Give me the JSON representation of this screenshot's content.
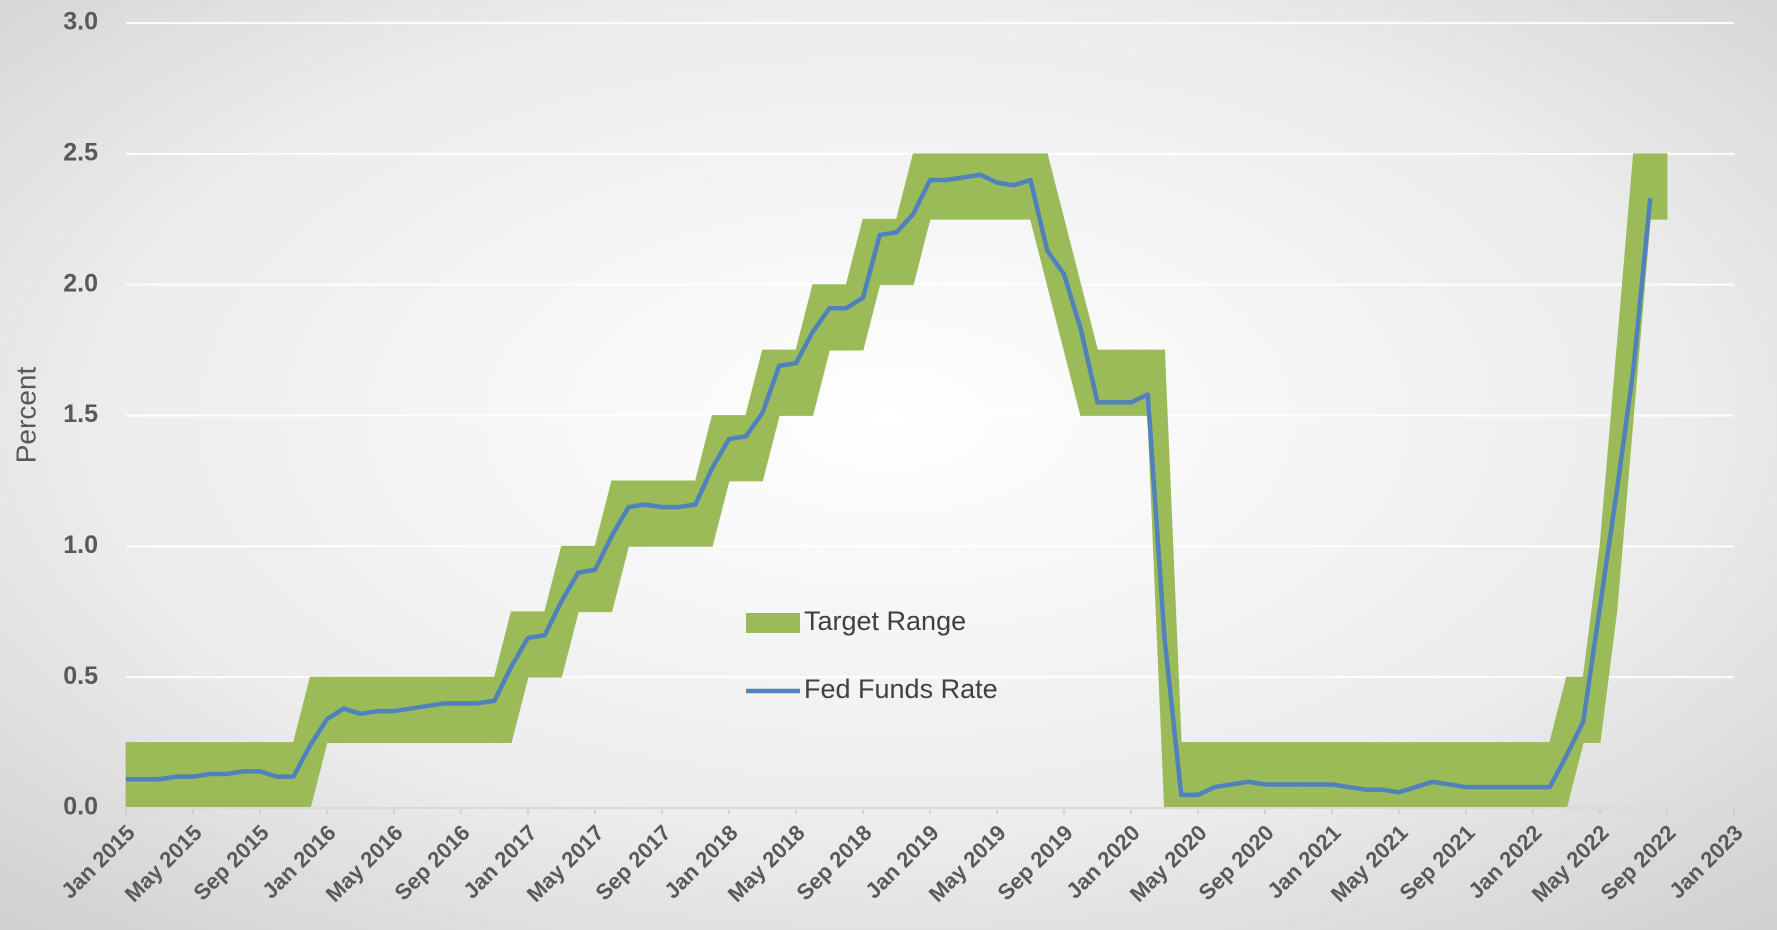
{
  "chart_data": {
    "type": "band-line",
    "y_label": "Percent",
    "x": [
      "2015-01",
      "2015-02",
      "2015-03",
      "2015-04",
      "2015-05",
      "2015-06",
      "2015-07",
      "2015-08",
      "2015-09",
      "2015-10",
      "2015-11",
      "2015-12",
      "2016-01",
      "2016-02",
      "2016-03",
      "2016-04",
      "2016-05",
      "2016-06",
      "2016-07",
      "2016-08",
      "2016-09",
      "2016-10",
      "2016-11",
      "2016-12",
      "2017-01",
      "2017-02",
      "2017-03",
      "2017-04",
      "2017-05",
      "2017-06",
      "2017-07",
      "2017-08",
      "2017-09",
      "2017-10",
      "2017-11",
      "2017-12",
      "2018-01",
      "2018-02",
      "2018-03",
      "2018-04",
      "2018-05",
      "2018-06",
      "2018-07",
      "2018-08",
      "2018-09",
      "2018-10",
      "2018-11",
      "2018-12",
      "2019-01",
      "2019-02",
      "2019-03",
      "2019-04",
      "2019-05",
      "2019-06",
      "2019-07",
      "2019-08",
      "2019-09",
      "2019-10",
      "2019-11",
      "2019-12",
      "2020-01",
      "2020-02",
      "2020-03",
      "2020-04",
      "2020-05",
      "2020-06",
      "2020-07",
      "2020-08",
      "2020-09",
      "2020-10",
      "2020-11",
      "2020-12",
      "2021-01",
      "2021-02",
      "2021-03",
      "2021-04",
      "2021-05",
      "2021-06",
      "2021-07",
      "2021-08",
      "2021-09",
      "2021-10",
      "2021-11",
      "2021-12",
      "2022-01",
      "2022-02",
      "2022-03",
      "2022-04",
      "2022-05",
      "2022-06",
      "2022-07",
      "2022-08",
      "2022-09"
    ],
    "series": [
      {
        "name": "Target Range",
        "color": "#9bbb59",
        "lower": [
          0,
          0,
          0,
          0,
          0,
          0,
          0,
          0,
          0,
          0,
          0,
          0,
          0.25,
          0.25,
          0.25,
          0.25,
          0.25,
          0.25,
          0.25,
          0.25,
          0.25,
          0.25,
          0.25,
          0.25,
          0.5,
          0.5,
          0.5,
          0.75,
          0.75,
          0.75,
          1.0,
          1.0,
          1.0,
          1.0,
          1.0,
          1.0,
          1.25,
          1.25,
          1.25,
          1.5,
          1.5,
          1.5,
          1.75,
          1.75,
          1.75,
          2.0,
          2.0,
          2.0,
          2.25,
          2.25,
          2.25,
          2.25,
          2.25,
          2.25,
          2.25,
          2.0,
          1.75,
          1.5,
          1.5,
          1.5,
          1.5,
          1.5,
          0,
          0,
          0,
          0,
          0,
          0,
          0,
          0,
          0,
          0,
          0,
          0,
          0,
          0,
          0,
          0,
          0,
          0,
          0,
          0,
          0,
          0,
          0,
          0,
          0,
          0.25,
          0.25,
          0.75,
          1.5,
          2.25,
          2.25
        ],
        "upper": [
          0.25,
          0.25,
          0.25,
          0.25,
          0.25,
          0.25,
          0.25,
          0.25,
          0.25,
          0.25,
          0.25,
          0.5,
          0.5,
          0.5,
          0.5,
          0.5,
          0.5,
          0.5,
          0.5,
          0.5,
          0.5,
          0.5,
          0.5,
          0.75,
          0.75,
          0.75,
          1.0,
          1.0,
          1.0,
          1.25,
          1.25,
          1.25,
          1.25,
          1.25,
          1.25,
          1.5,
          1.5,
          1.5,
          1.75,
          1.75,
          1.75,
          2.0,
          2.0,
          2.0,
          2.25,
          2.25,
          2.25,
          2.5,
          2.5,
          2.5,
          2.5,
          2.5,
          2.5,
          2.5,
          2.5,
          2.5,
          2.25,
          2.0,
          1.75,
          1.75,
          1.75,
          1.75,
          1.75,
          0.25,
          0.25,
          0.25,
          0.25,
          0.25,
          0.25,
          0.25,
          0.25,
          0.25,
          0.25,
          0.25,
          0.25,
          0.25,
          0.25,
          0.25,
          0.25,
          0.25,
          0.25,
          0.25,
          0.25,
          0.25,
          0.25,
          0.25,
          0.5,
          0.5,
          1.0,
          1.75,
          2.5,
          2.5,
          2.5
        ]
      },
      {
        "name": "Fed Funds Rate",
        "color": "#4f81bd",
        "values": [
          0.11,
          0.11,
          0.11,
          0.12,
          0.12,
          0.13,
          0.13,
          0.14,
          0.14,
          0.12,
          0.12,
          0.24,
          0.34,
          0.38,
          0.36,
          0.37,
          0.37,
          0.38,
          0.39,
          0.4,
          0.4,
          0.4,
          0.41,
          0.54,
          0.65,
          0.66,
          0.79,
          0.9,
          0.91,
          1.04,
          1.15,
          1.16,
          1.15,
          1.15,
          1.16,
          1.3,
          1.41,
          1.42,
          1.51,
          1.69,
          1.7,
          1.82,
          1.91,
          1.91,
          1.95,
          2.19,
          2.2,
          2.27,
          2.4,
          2.4,
          2.41,
          2.42,
          2.39,
          2.38,
          2.4,
          2.13,
          2.04,
          1.83,
          1.55,
          1.55,
          1.55,
          1.58,
          0.65,
          0.05,
          0.05,
          0.08,
          0.09,
          0.1,
          0.09,
          0.09,
          0.09,
          0.09,
          0.09,
          0.08,
          0.07,
          0.07,
          0.06,
          0.08,
          0.1,
          0.09,
          0.08,
          0.08,
          0.08,
          0.08,
          0.08,
          0.08,
          0.2,
          0.33,
          0.77,
          1.21,
          1.68,
          2.33,
          null
        ]
      }
    ],
    "xlim": [
      "2015-01",
      "2023-01"
    ],
    "xticks": [
      {
        "value": "2015-01",
        "label": "Jan 2015"
      },
      {
        "value": "2015-05",
        "label": "May 2015"
      },
      {
        "value": "2015-09",
        "label": "Sep 2015"
      },
      {
        "value": "2016-01",
        "label": "Jan 2016"
      },
      {
        "value": "2016-05",
        "label": "May 2016"
      },
      {
        "value": "2016-09",
        "label": "Sep 2016"
      },
      {
        "value": "2017-01",
        "label": "Jan 2017"
      },
      {
        "value": "2017-05",
        "label": "May 2017"
      },
      {
        "value": "2017-09",
        "label": "Sep 2017"
      },
      {
        "value": "2018-01",
        "label": "Jan 2018"
      },
      {
        "value": "2018-05",
        "label": "May 2018"
      },
      {
        "value": "2018-09",
        "label": "Sep 2018"
      },
      {
        "value": "2019-01",
        "label": "Jan 2019"
      },
      {
        "value": "2019-05",
        "label": "May 2019"
      },
      {
        "value": "2019-09",
        "label": "Sep 2019"
      },
      {
        "value": "2020-01",
        "label": "Jan 2020"
      },
      {
        "value": "2020-05",
        "label": "May 2020"
      },
      {
        "value": "2020-09",
        "label": "Sep 2020"
      },
      {
        "value": "2021-01",
        "label": "Jan 2021"
      },
      {
        "value": "2021-05",
        "label": "May 2021"
      },
      {
        "value": "2021-09",
        "label": "Sep 2021"
      },
      {
        "value": "2022-01",
        "label": "Jan 2022"
      },
      {
        "value": "2022-05",
        "label": "May 2022"
      },
      {
        "value": "2022-09",
        "label": "Sep 2022"
      },
      {
        "value": "2023-01",
        "label": "Jan 2023"
      }
    ],
    "ylim": [
      0,
      3
    ],
    "yticks": [
      {
        "value": 0,
        "label": "0.0"
      },
      {
        "value": 0.5,
        "label": "0.5"
      },
      {
        "value": 1,
        "label": "1.0"
      },
      {
        "value": 1.5,
        "label": "1.5"
      },
      {
        "value": 2,
        "label": "2.0"
      },
      {
        "value": 2.5,
        "label": "2.5"
      },
      {
        "value": 3,
        "label": "3.0"
      }
    ],
    "grid": true
  }
}
